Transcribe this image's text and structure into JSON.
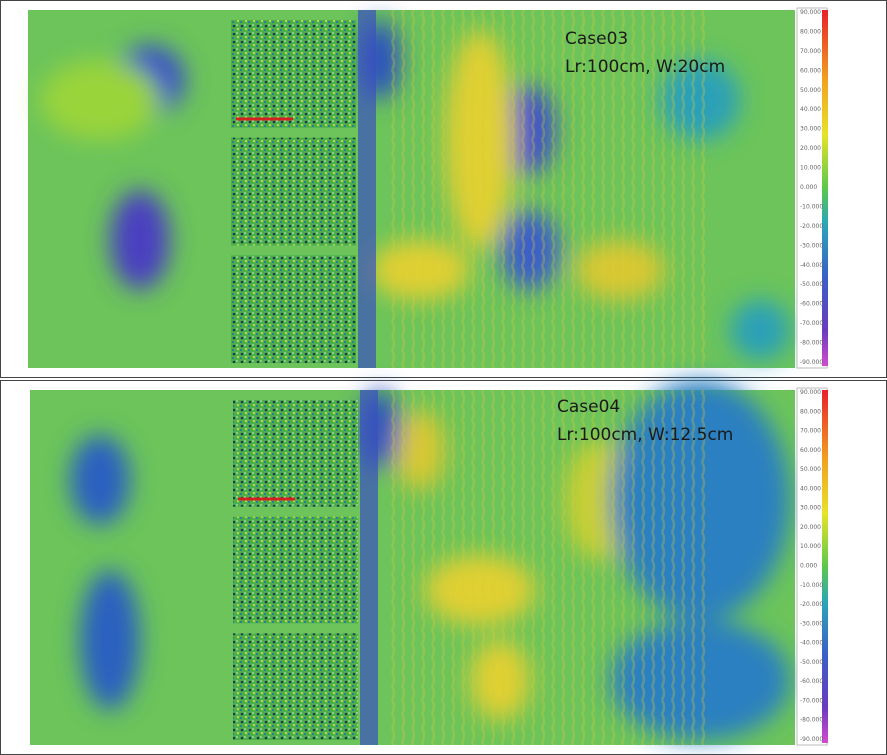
{
  "panels": [
    {
      "case": "Case03",
      "params": "Lr:100cm, W:20cm",
      "colorbar_labels": [
        "90.000",
        "80.000",
        "70.000",
        "60.000",
        "50.000",
        "40.000",
        "30.000",
        "20.000",
        "10.000",
        "0.000",
        "-10.000",
        "-20.000",
        "-30.000",
        "-40.000",
        "-50.000",
        "-60.000",
        "-70.000",
        "-80.000",
        "-90.000"
      ]
    },
    {
      "case": "Case04",
      "params": "Lr:100cm, W:12.5cm",
      "colorbar_labels": [
        "90.000",
        "80.000",
        "70.000",
        "60.000",
        "50.000",
        "40.000",
        "30.000",
        "20.000",
        "10.000",
        "0.000",
        "-10.000",
        "-20.000",
        "-30.000",
        "-40.000",
        "-50.000",
        "-60.000",
        "-70.000",
        "-80.000",
        "-90.000"
      ]
    }
  ]
}
